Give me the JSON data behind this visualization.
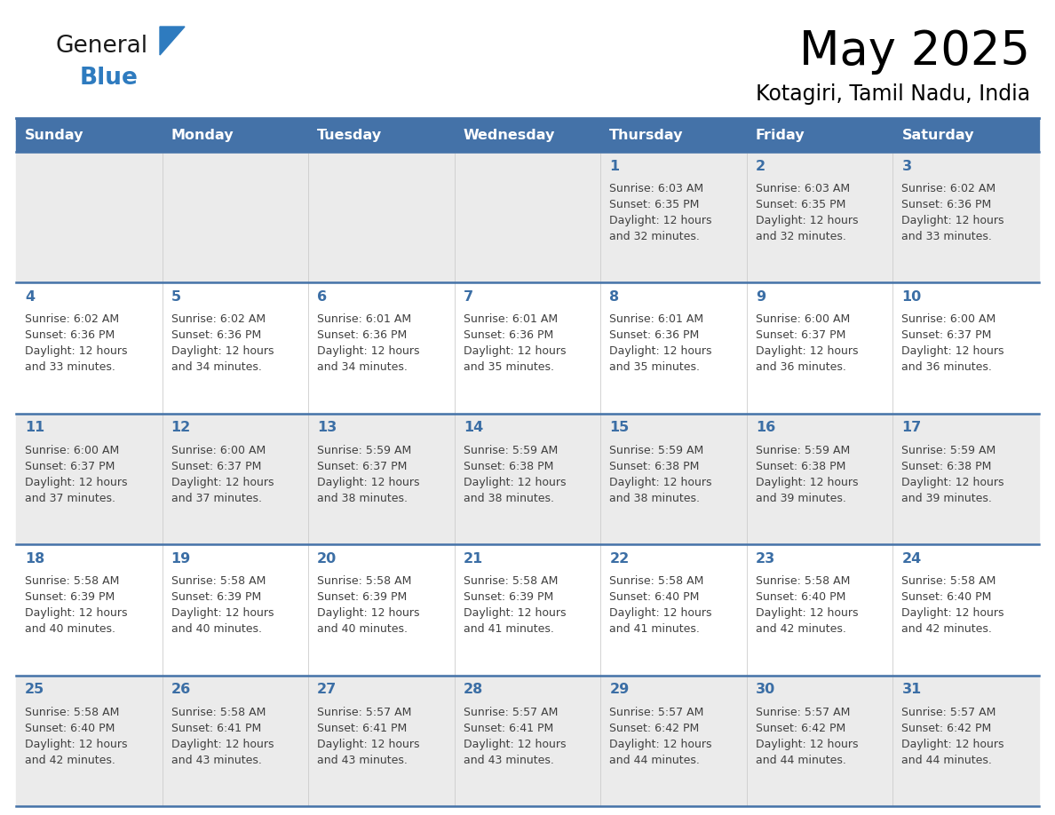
{
  "title": "May 2025",
  "subtitle": "Kotagiri, Tamil Nadu, India",
  "days_of_week": [
    "Sunday",
    "Monday",
    "Tuesday",
    "Wednesday",
    "Thursday",
    "Friday",
    "Saturday"
  ],
  "header_bg_color": "#4472A8",
  "header_text_color": "#FFFFFF",
  "cell_bg_odd": "#EBEBEB",
  "cell_bg_even": "#FFFFFF",
  "day_number_color": "#3B6EA5",
  "text_color": "#404040",
  "line_color": "#4472A8",
  "logo_general_color": "#1a1a1a",
  "logo_blue_color": "#2E7BBF",
  "weeks": [
    {
      "days": [
        {
          "day": null,
          "sunrise": null,
          "sunset": null,
          "daylight": null
        },
        {
          "day": null,
          "sunrise": null,
          "sunset": null,
          "daylight": null
        },
        {
          "day": null,
          "sunrise": null,
          "sunset": null,
          "daylight": null
        },
        {
          "day": null,
          "sunrise": null,
          "sunset": null,
          "daylight": null
        },
        {
          "day": 1,
          "sunrise": "6:03 AM",
          "sunset": "6:35 PM",
          "daylight": "12 hours\nand 32 minutes."
        },
        {
          "day": 2,
          "sunrise": "6:03 AM",
          "sunset": "6:35 PM",
          "daylight": "12 hours\nand 32 minutes."
        },
        {
          "day": 3,
          "sunrise": "6:02 AM",
          "sunset": "6:36 PM",
          "daylight": "12 hours\nand 33 minutes."
        }
      ]
    },
    {
      "days": [
        {
          "day": 4,
          "sunrise": "6:02 AM",
          "sunset": "6:36 PM",
          "daylight": "12 hours\nand 33 minutes."
        },
        {
          "day": 5,
          "sunrise": "6:02 AM",
          "sunset": "6:36 PM",
          "daylight": "12 hours\nand 34 minutes."
        },
        {
          "day": 6,
          "sunrise": "6:01 AM",
          "sunset": "6:36 PM",
          "daylight": "12 hours\nand 34 minutes."
        },
        {
          "day": 7,
          "sunrise": "6:01 AM",
          "sunset": "6:36 PM",
          "daylight": "12 hours\nand 35 minutes."
        },
        {
          "day": 8,
          "sunrise": "6:01 AM",
          "sunset": "6:36 PM",
          "daylight": "12 hours\nand 35 minutes."
        },
        {
          "day": 9,
          "sunrise": "6:00 AM",
          "sunset": "6:37 PM",
          "daylight": "12 hours\nand 36 minutes."
        },
        {
          "day": 10,
          "sunrise": "6:00 AM",
          "sunset": "6:37 PM",
          "daylight": "12 hours\nand 36 minutes."
        }
      ]
    },
    {
      "days": [
        {
          "day": 11,
          "sunrise": "6:00 AM",
          "sunset": "6:37 PM",
          "daylight": "12 hours\nand 37 minutes."
        },
        {
          "day": 12,
          "sunrise": "6:00 AM",
          "sunset": "6:37 PM",
          "daylight": "12 hours\nand 37 minutes."
        },
        {
          "day": 13,
          "sunrise": "5:59 AM",
          "sunset": "6:37 PM",
          "daylight": "12 hours\nand 38 minutes."
        },
        {
          "day": 14,
          "sunrise": "5:59 AM",
          "sunset": "6:38 PM",
          "daylight": "12 hours\nand 38 minutes."
        },
        {
          "day": 15,
          "sunrise": "5:59 AM",
          "sunset": "6:38 PM",
          "daylight": "12 hours\nand 38 minutes."
        },
        {
          "day": 16,
          "sunrise": "5:59 AM",
          "sunset": "6:38 PM",
          "daylight": "12 hours\nand 39 minutes."
        },
        {
          "day": 17,
          "sunrise": "5:59 AM",
          "sunset": "6:38 PM",
          "daylight": "12 hours\nand 39 minutes."
        }
      ]
    },
    {
      "days": [
        {
          "day": 18,
          "sunrise": "5:58 AM",
          "sunset": "6:39 PM",
          "daylight": "12 hours\nand 40 minutes."
        },
        {
          "day": 19,
          "sunrise": "5:58 AM",
          "sunset": "6:39 PM",
          "daylight": "12 hours\nand 40 minutes."
        },
        {
          "day": 20,
          "sunrise": "5:58 AM",
          "sunset": "6:39 PM",
          "daylight": "12 hours\nand 40 minutes."
        },
        {
          "day": 21,
          "sunrise": "5:58 AM",
          "sunset": "6:39 PM",
          "daylight": "12 hours\nand 41 minutes."
        },
        {
          "day": 22,
          "sunrise": "5:58 AM",
          "sunset": "6:40 PM",
          "daylight": "12 hours\nand 41 minutes."
        },
        {
          "day": 23,
          "sunrise": "5:58 AM",
          "sunset": "6:40 PM",
          "daylight": "12 hours\nand 42 minutes."
        },
        {
          "day": 24,
          "sunrise": "5:58 AM",
          "sunset": "6:40 PM",
          "daylight": "12 hours\nand 42 minutes."
        }
      ]
    },
    {
      "days": [
        {
          "day": 25,
          "sunrise": "5:58 AM",
          "sunset": "6:40 PM",
          "daylight": "12 hours\nand 42 minutes."
        },
        {
          "day": 26,
          "sunrise": "5:58 AM",
          "sunset": "6:41 PM",
          "daylight": "12 hours\nand 43 minutes."
        },
        {
          "day": 27,
          "sunrise": "5:57 AM",
          "sunset": "6:41 PM",
          "daylight": "12 hours\nand 43 minutes."
        },
        {
          "day": 28,
          "sunrise": "5:57 AM",
          "sunset": "6:41 PM",
          "daylight": "12 hours\nand 43 minutes."
        },
        {
          "day": 29,
          "sunrise": "5:57 AM",
          "sunset": "6:42 PM",
          "daylight": "12 hours\nand 44 minutes."
        },
        {
          "day": 30,
          "sunrise": "5:57 AM",
          "sunset": "6:42 PM",
          "daylight": "12 hours\nand 44 minutes."
        },
        {
          "day": 31,
          "sunrise": "5:57 AM",
          "sunset": "6:42 PM",
          "daylight": "12 hours\nand 44 minutes."
        }
      ]
    }
  ]
}
